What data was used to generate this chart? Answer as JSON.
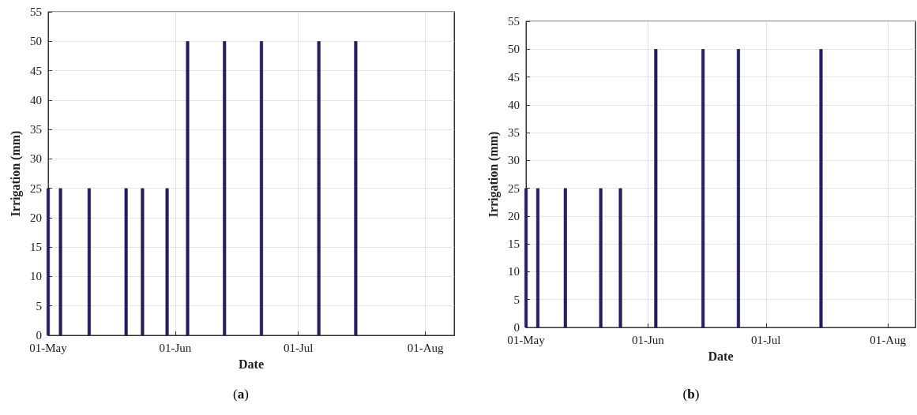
{
  "chart_data": [
    {
      "type": "bar",
      "xlabel": "Date",
      "ylabel": "Irrigation (mm)",
      "annotations": [
        "(a)"
      ],
      "x": [
        "--05-01",
        "--05-04",
        "--05-11",
        "--05-20",
        "--05-24",
        "--05-30",
        "--06-04",
        "--06-13",
        "--06-22",
        "--07-06",
        "--07-15"
      ],
      "values": [
        25,
        25,
        25,
        25,
        25,
        25,
        50,
        50,
        50,
        50,
        50
      ],
      "color": "#241f6b",
      "xlim": [
        "--05-01",
        "--08-08"
      ],
      "xticks": [
        {
          "value": "--05-01",
          "label": "01-May"
        },
        {
          "value": "--06-01",
          "label": "01-Jun"
        },
        {
          "value": "--07-01",
          "label": "01-Jul"
        },
        {
          "value": "--08-01",
          "label": "01-Aug"
        }
      ],
      "ylim": [
        0,
        55
      ],
      "yticks": [
        0,
        5,
        10,
        15,
        20,
        25,
        30,
        35,
        40,
        45,
        50,
        55
      ],
      "grid": true
    },
    {
      "type": "bar",
      "xlabel": "Date",
      "ylabel": "Irrigation (mm)",
      "annotations": [
        "(b)"
      ],
      "x": [
        "--05-01",
        "--05-04",
        "--05-11",
        "--05-20",
        "--05-25",
        "--06-03",
        "--06-15",
        "--06-24",
        "--07-15"
      ],
      "values": [
        25,
        25,
        25,
        25,
        25,
        50,
        50,
        50,
        50
      ],
      "color": "#241f6b",
      "xlim": [
        "--05-01",
        "--08-08"
      ],
      "xticks": [
        {
          "value": "--05-01",
          "label": "01-May"
        },
        {
          "value": "--06-01",
          "label": "01-Jun"
        },
        {
          "value": "--07-01",
          "label": "01-Jul"
        },
        {
          "value": "--08-01",
          "label": "01-Aug"
        }
      ],
      "ylim": [
        0,
        55
      ],
      "yticks": [
        0,
        5,
        10,
        15,
        20,
        25,
        30,
        35,
        40,
        45,
        50,
        55
      ],
      "grid": true
    }
  ]
}
